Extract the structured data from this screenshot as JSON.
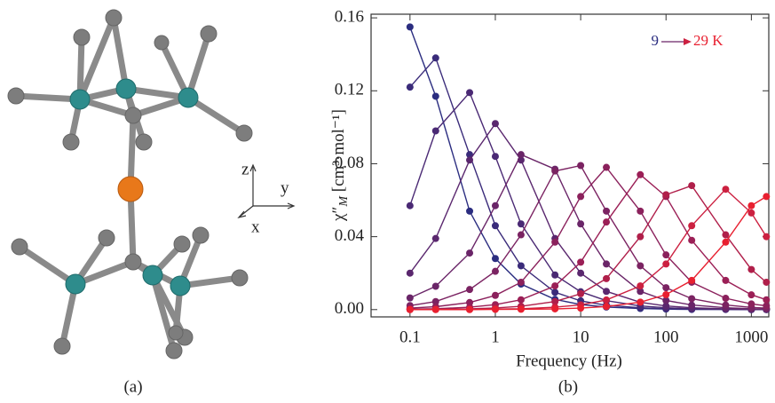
{
  "panel_a": {
    "caption": "(a)",
    "axes": {
      "z": "z",
      "y": "y",
      "x": "x"
    }
  },
  "chart_data": {
    "type": "line",
    "caption": "(b)",
    "x_label": "Frequency (Hz)",
    "y_label": {
      "symbol": "χ″",
      "subscript": "M",
      "unit": " [cm³·mol⁻¹]"
    },
    "annotations": {
      "start": "9",
      "end": "29 K"
    },
    "x": [
      0.1,
      0.2,
      0.5,
      1,
      2,
      5,
      10,
      20,
      50,
      100,
      200,
      500,
      1000,
      1500
    ],
    "xlim": [
      0.035,
      1600
    ],
    "xscale": "log",
    "xticks": [
      0.1,
      1,
      10,
      100,
      1000
    ],
    "ylim": [
      -0.004,
      0.162
    ],
    "yticks": [
      {
        "value": 0,
        "label": "0.00"
      },
      0.04,
      0.08,
      0.12,
      0.16
    ],
    "series": [
      {
        "color": "#2b2d80",
        "values": [
          0.155,
          0.117,
          0.054,
          0.028,
          0.014,
          0.0056,
          0.0028,
          0.0014,
          0.0006,
          0.0003,
          0.0001,
          0.0001,
          0.0,
          0.0
        ]
      },
      {
        "color": "#3a2b7a",
        "values": [
          0.122,
          0.138,
          0.085,
          0.046,
          0.024,
          0.0095,
          0.0048,
          0.0024,
          0.001,
          0.0005,
          0.0002,
          0.0001,
          0.0,
          0.0
        ]
      },
      {
        "color": "#4a2974",
        "values": [
          0.057,
          0.098,
          0.119,
          0.084,
          0.047,
          0.019,
          0.0098,
          0.0049,
          0.002,
          0.001,
          0.0005,
          0.0002,
          0.0001,
          0.0001
        ]
      },
      {
        "color": "#5a276e",
        "values": [
          0.02,
          0.039,
          0.082,
          0.102,
          0.082,
          0.039,
          0.02,
          0.01,
          0.004,
          0.002,
          0.001,
          0.0004,
          0.0002,
          0.0001
        ]
      },
      {
        "color": "#6a2568",
        "values": [
          0.0064,
          0.0128,
          0.031,
          0.057,
          0.085,
          0.077,
          0.047,
          0.025,
          0.01,
          0.005,
          0.0025,
          0.001,
          0.0005,
          0.0003
        ]
      },
      {
        "color": "#7b2362",
        "values": [
          0.0022,
          0.0044,
          0.011,
          0.021,
          0.041,
          0.076,
          0.079,
          0.054,
          0.024,
          0.012,
          0.006,
          0.0025,
          0.0012,
          0.0008
        ]
      },
      {
        "color": "#8b215c",
        "values": [
          0.0008,
          0.0016,
          0.0039,
          0.0078,
          0.015,
          0.037,
          0.062,
          0.078,
          0.054,
          0.03,
          0.015,
          0.0062,
          0.0031,
          0.0021
        ]
      },
      {
        "color": "#9b1f56",
        "values": [
          0.0003,
          0.0005,
          0.0013,
          0.0027,
          0.0054,
          0.013,
          0.026,
          0.048,
          0.074,
          0.062,
          0.038,
          0.016,
          0.0081,
          0.0054
        ]
      },
      {
        "color": "#b01f4a",
        "values": [
          0.0001,
          0.0002,
          0.0004,
          0.0009,
          0.0018,
          0.0044,
          0.0087,
          0.017,
          0.04,
          0.063,
          0.068,
          0.041,
          0.022,
          0.015
        ]
      },
      {
        "color": "#cc2040",
        "values": [
          0.0,
          0.0001,
          0.0001,
          0.0003,
          0.0005,
          0.0013,
          0.0026,
          0.0053,
          0.013,
          0.025,
          0.046,
          0.066,
          0.053,
          0.04
        ]
      },
      {
        "color": "#e82030",
        "values": [
          0.0,
          0.0,
          0.0,
          0.0001,
          0.0002,
          0.0004,
          0.0008,
          0.0017,
          0.0041,
          0.0082,
          0.016,
          0.037,
          0.057,
          0.062
        ]
      }
    ]
  }
}
